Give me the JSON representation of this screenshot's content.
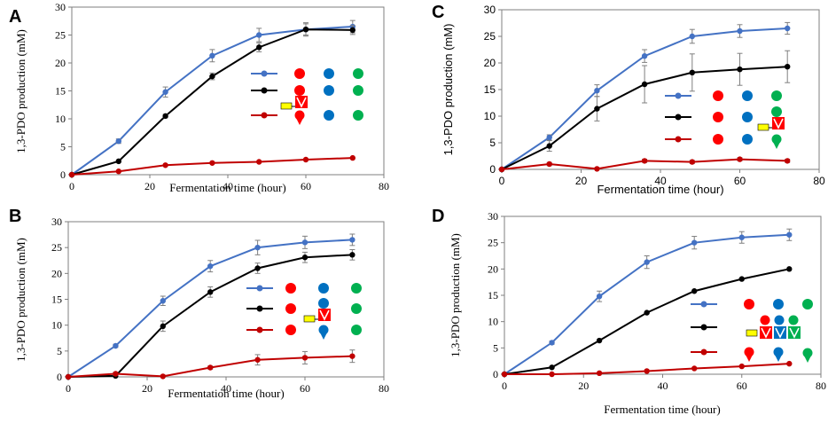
{
  "colors": {
    "blue": "#4472C4",
    "black": "#000000",
    "red": "#C00000",
    "glyph_red": "#FF0000",
    "glyph_blue": "#0070C0",
    "glyph_green": "#00B050",
    "glyph_yellow": "#FFFF00"
  },
  "chart_data": [
    {
      "panel": "A",
      "type": "line",
      "xlabel": "Fermentation time (hour)",
      "ylabel": "1,3-PDO production (mM)",
      "xlim": [
        0,
        80
      ],
      "ylim": [
        0,
        30
      ],
      "xticks": [
        0,
        20,
        40,
        60,
        80
      ],
      "yticks": [
        0,
        5,
        10,
        15,
        20,
        25,
        30
      ],
      "x": [
        0,
        12,
        24,
        36,
        48,
        60,
        72
      ],
      "series": [
        {
          "name": "blue",
          "values": [
            0,
            6,
            14.8,
            21.3,
            25,
            26,
            26.5
          ],
          "err": [
            0,
            0.4,
            0.9,
            1.1,
            1.2,
            1.2,
            1.1
          ]
        },
        {
          "name": "black",
          "values": [
            0,
            2.4,
            10.5,
            17.6,
            22.8,
            26,
            25.9
          ],
          "err": [
            0,
            0.2,
            0.3,
            0.6,
            0.8,
            1,
            0.8
          ]
        },
        {
          "name": "red",
          "values": [
            0,
            0.6,
            1.7,
            2.1,
            2.3,
            2.7,
            3
          ],
          "err": [
            0,
            0,
            0,
            0,
            0,
            0,
            0
          ]
        }
      ]
    },
    {
      "panel": "B",
      "type": "line",
      "xlabel": "Fermentation time (hour)",
      "ylabel": "1,3-PDO production (mM)",
      "xlim": [
        0,
        80
      ],
      "ylim": [
        0,
        30
      ],
      "xticks": [
        0,
        20,
        40,
        60,
        80
      ],
      "yticks": [
        0,
        5,
        10,
        15,
        20,
        25,
        30
      ],
      "x": [
        0,
        12,
        24,
        36,
        48,
        60,
        72
      ],
      "series": [
        {
          "name": "blue",
          "values": [
            0,
            6,
            14.7,
            21.4,
            25,
            26,
            26.5
          ],
          "err": [
            0,
            0.3,
            0.9,
            1.1,
            1.4,
            1.2,
            1.1
          ]
        },
        {
          "name": "black",
          "values": [
            0,
            0.2,
            9.8,
            16.4,
            21,
            23.1,
            23.6
          ],
          "err": [
            0,
            0,
            1,
            1,
            1,
            1,
            1
          ]
        },
        {
          "name": "red",
          "values": [
            0,
            0.6,
            0.1,
            1.8,
            3.3,
            3.7,
            4
          ],
          "err": [
            0,
            0.3,
            0,
            0.3,
            1,
            1.2,
            1.2
          ]
        }
      ]
    },
    {
      "panel": "C",
      "type": "line",
      "xlabel": "Fermentation time (hour)",
      "ylabel": "1,3-PDO production (mM)",
      "xlim": [
        0,
        80
      ],
      "ylim": [
        0,
        30
      ],
      "xticks": [
        0,
        20,
        40,
        60,
        80
      ],
      "yticks": [
        0,
        5,
        10,
        15,
        20,
        25,
        30
      ],
      "x": [
        0,
        12,
        24,
        36,
        48,
        60,
        72
      ],
      "series": [
        {
          "name": "blue",
          "values": [
            0,
            6,
            14.8,
            21.3,
            25,
            26,
            26.5
          ],
          "err": [
            0,
            0.5,
            1.1,
            1.2,
            1.3,
            1.2,
            1.1
          ]
        },
        {
          "name": "black",
          "values": [
            0,
            4.4,
            11.4,
            16,
            18.2,
            18.8,
            19.3
          ],
          "err": [
            0,
            1,
            2.3,
            3.5,
            3.5,
            3,
            3
          ]
        },
        {
          "name": "red",
          "values": [
            0,
            1,
            0.1,
            1.6,
            1.4,
            1.9,
            1.6
          ],
          "err": [
            0,
            0.3,
            0,
            0.3,
            0.3,
            0.3,
            0.3
          ]
        }
      ]
    },
    {
      "panel": "D",
      "type": "line",
      "xlabel": "Fermentation time (hour)",
      "ylabel": "1,3-PDO production  (mM)",
      "xlim": [
        0,
        80
      ],
      "ylim": [
        0,
        30
      ],
      "xticks": [
        0,
        20,
        40,
        60,
        80
      ],
      "yticks": [
        0,
        5,
        10,
        15,
        20,
        25,
        30
      ],
      "x": [
        0,
        12,
        24,
        36,
        48,
        60,
        72
      ],
      "series": [
        {
          "name": "blue",
          "values": [
            0,
            6,
            14.8,
            21.3,
            25,
            26,
            26.5
          ],
          "err": [
            0,
            0.3,
            1,
            1.2,
            1.2,
            1.1,
            1.1
          ]
        },
        {
          "name": "black",
          "values": [
            0,
            1.3,
            6.4,
            11.7,
            15.8,
            18.1,
            20
          ],
          "err": [
            0,
            0,
            0,
            0,
            0,
            0,
            0
          ]
        },
        {
          "name": "red",
          "values": [
            0,
            0,
            0.2,
            0.6,
            1.1,
            1.5,
            2
          ],
          "err": [
            0,
            0,
            0,
            0,
            0,
            0,
            0
          ]
        }
      ]
    }
  ]
}
